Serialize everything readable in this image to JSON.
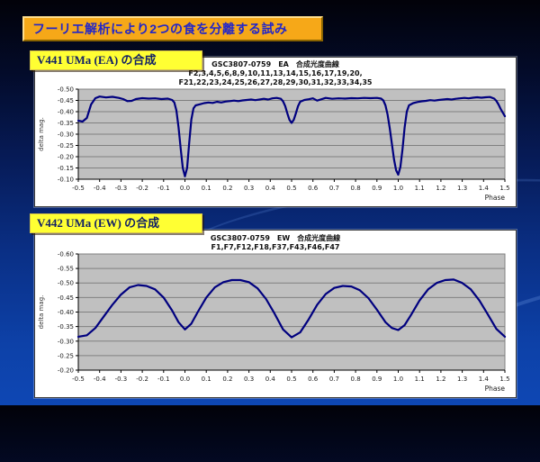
{
  "slide": {
    "title": "フーリエ解析により2つの食を分離する試み",
    "colors": {
      "title_bg": "#f6a818",
      "title_text": "#2226c8",
      "label_bg": "#ffff33",
      "label_text": "#101f66",
      "curve": "#00007f",
      "plot_bg": "#c0c0c0",
      "gridline": "#808080",
      "axis": "#000000"
    }
  },
  "sections": [
    {
      "label": "V441 UMa (EA) の合成"
    },
    {
      "label": "V442 UMa (EW) の合成"
    }
  ],
  "chart_data": [
    {
      "type": "line",
      "title_lines": [
        "GSC3807-0759　EA　合成光度曲線",
        "F2,3,4,5,6,8,9,10,11,13,14,15,16,17,19,20,",
        "F21,22,23,24,25,26,27,28,29,30,31,32,33,34,35"
      ],
      "xlabel": "Phase",
      "ylabel": "delta mag.",
      "xlim": [
        -0.5,
        1.5
      ],
      "ylim_top_to_bottom": [
        -0.5,
        -0.1
      ],
      "grid": "horizontal",
      "legend": "none",
      "x_ticks": [
        -0.5,
        -0.4,
        -0.3,
        -0.2,
        -0.1,
        0.0,
        0.1,
        0.2,
        0.3,
        0.4,
        0.5,
        0.6,
        0.7,
        0.8,
        0.9,
        1.0,
        1.1,
        1.2,
        1.3,
        1.4,
        1.5
      ],
      "x_tick_labels": [
        "-0.5",
        "-0.4",
        "-0.3",
        "-0.2",
        "-0.1",
        "0.0",
        "0.1",
        "0.2",
        "0.3",
        "0.4",
        "0.5",
        "0.6",
        "0.7",
        "0.8",
        "0.9",
        "1.0",
        "1.1",
        "1.2",
        "1.3",
        "1.4",
        "1.5"
      ],
      "y_ticks": [
        -0.5,
        -0.45,
        -0.4,
        -0.35,
        -0.3,
        -0.25,
        -0.2,
        -0.15,
        -0.1
      ],
      "y_tick_labels": [
        "-0.50",
        "-0.45",
        "-0.40",
        "-0.35",
        "-0.30",
        "-0.25",
        "-0.20",
        "-0.15",
        "-0.10"
      ],
      "points": [
        [
          -0.5,
          -0.36
        ],
        [
          -0.48,
          -0.356
        ],
        [
          -0.46,
          -0.372
        ],
        [
          -0.44,
          -0.432
        ],
        [
          -0.42,
          -0.46
        ],
        [
          -0.4,
          -0.467
        ],
        [
          -0.37,
          -0.463
        ],
        [
          -0.34,
          -0.466
        ],
        [
          -0.31,
          -0.461
        ],
        [
          -0.29,
          -0.456
        ],
        [
          -0.27,
          -0.447
        ],
        [
          -0.25,
          -0.448
        ],
        [
          -0.23,
          -0.456
        ],
        [
          -0.2,
          -0.46
        ],
        [
          -0.17,
          -0.458
        ],
        [
          -0.14,
          -0.459
        ],
        [
          -0.11,
          -0.456
        ],
        [
          -0.08,
          -0.458
        ],
        [
          -0.06,
          -0.452
        ],
        [
          -0.05,
          -0.441
        ],
        [
          -0.04,
          -0.405
        ],
        [
          -0.03,
          -0.33
        ],
        [
          -0.02,
          -0.235
        ],
        [
          -0.01,
          -0.15
        ],
        [
          0.0,
          -0.113
        ],
        [
          0.01,
          -0.15
        ],
        [
          0.02,
          -0.26
        ],
        [
          0.03,
          -0.365
        ],
        [
          0.04,
          -0.415
        ],
        [
          0.05,
          -0.428
        ],
        [
          0.07,
          -0.433
        ],
        [
          0.09,
          -0.438
        ],
        [
          0.11,
          -0.441
        ],
        [
          0.13,
          -0.439
        ],
        [
          0.15,
          -0.444
        ],
        [
          0.17,
          -0.441
        ],
        [
          0.19,
          -0.445
        ],
        [
          0.21,
          -0.447
        ],
        [
          0.23,
          -0.449
        ],
        [
          0.25,
          -0.447
        ],
        [
          0.27,
          -0.45
        ],
        [
          0.29,
          -0.452
        ],
        [
          0.31,
          -0.454
        ],
        [
          0.33,
          -0.451
        ],
        [
          0.35,
          -0.454
        ],
        [
          0.37,
          -0.457
        ],
        [
          0.39,
          -0.454
        ],
        [
          0.41,
          -0.459
        ],
        [
          0.43,
          -0.461
        ],
        [
          0.45,
          -0.457
        ],
        [
          0.46,
          -0.446
        ],
        [
          0.47,
          -0.425
        ],
        [
          0.48,
          -0.392
        ],
        [
          0.49,
          -0.364
        ],
        [
          0.5,
          -0.35
        ],
        [
          0.51,
          -0.364
        ],
        [
          0.52,
          -0.392
        ],
        [
          0.53,
          -0.424
        ],
        [
          0.54,
          -0.444
        ],
        [
          0.56,
          -0.452
        ],
        [
          0.58,
          -0.455
        ],
        [
          0.6,
          -0.459
        ],
        [
          0.62,
          -0.449
        ],
        [
          0.64,
          -0.455
        ],
        [
          0.66,
          -0.461
        ],
        [
          0.69,
          -0.457
        ],
        [
          0.72,
          -0.459
        ],
        [
          0.75,
          -0.458
        ],
        [
          0.78,
          -0.46
        ],
        [
          0.81,
          -0.459
        ],
        [
          0.84,
          -0.461
        ],
        [
          0.87,
          -0.46
        ],
        [
          0.9,
          -0.461
        ],
        [
          0.92,
          -0.458
        ],
        [
          0.93,
          -0.45
        ],
        [
          0.94,
          -0.428
        ],
        [
          0.95,
          -0.388
        ],
        [
          0.96,
          -0.328
        ],
        [
          0.97,
          -0.258
        ],
        [
          0.98,
          -0.188
        ],
        [
          0.99,
          -0.14
        ],
        [
          1.0,
          -0.12
        ],
        [
          1.01,
          -0.155
        ],
        [
          1.02,
          -0.232
        ],
        [
          1.03,
          -0.33
        ],
        [
          1.04,
          -0.4
        ],
        [
          1.05,
          -0.428
        ],
        [
          1.07,
          -0.438
        ],
        [
          1.09,
          -0.443
        ],
        [
          1.11,
          -0.446
        ],
        [
          1.13,
          -0.448
        ],
        [
          1.15,
          -0.451
        ],
        [
          1.17,
          -0.449
        ],
        [
          1.19,
          -0.452
        ],
        [
          1.21,
          -0.454
        ],
        [
          1.23,
          -0.456
        ],
        [
          1.25,
          -0.454
        ],
        [
          1.27,
          -0.457
        ],
        [
          1.29,
          -0.459
        ],
        [
          1.31,
          -0.461
        ],
        [
          1.33,
          -0.459
        ],
        [
          1.35,
          -0.462
        ],
        [
          1.37,
          -0.464
        ],
        [
          1.39,
          -0.462
        ],
        [
          1.41,
          -0.464
        ],
        [
          1.43,
          -0.465
        ],
        [
          1.45,
          -0.458
        ],
        [
          1.46,
          -0.448
        ],
        [
          1.47,
          -0.432
        ],
        [
          1.48,
          -0.412
        ],
        [
          1.49,
          -0.396
        ],
        [
          1.5,
          -0.38
        ]
      ]
    },
    {
      "type": "line",
      "title_lines": [
        "GSC3807-0759　EW　合成光度曲線",
        "F1,F7,F12,F18,F37,F43,F46,F47"
      ],
      "xlabel": "Phase",
      "ylabel": "delta mag.",
      "xlim": [
        -0.5,
        1.5
      ],
      "ylim_top_to_bottom": [
        -0.6,
        -0.2
      ],
      "grid": "horizontal",
      "legend": "none",
      "x_ticks": [
        -0.5,
        -0.4,
        -0.3,
        -0.2,
        -0.1,
        0.0,
        0.1,
        0.2,
        0.3,
        0.4,
        0.5,
        0.6,
        0.7,
        0.8,
        0.9,
        1.0,
        1.1,
        1.2,
        1.3,
        1.4,
        1.5
      ],
      "x_tick_labels": [
        "-0.5",
        "-0.4",
        "-0.3",
        "-0.2",
        "-0.1",
        "0.0",
        "0.1",
        "0.2",
        "0.3",
        "0.4",
        "0.5",
        "0.6",
        "0.7",
        "0.8",
        "0.9",
        "1.0",
        "1.1",
        "1.2",
        "1.3",
        "1.4",
        "1.5"
      ],
      "y_ticks": [
        -0.6,
        -0.55,
        -0.5,
        -0.45,
        -0.4,
        -0.35,
        -0.3,
        -0.25,
        -0.2
      ],
      "y_tick_labels": [
        "-0.60",
        "-0.55",
        "-0.50",
        "-0.45",
        "-0.40",
        "-0.35",
        "-0.30",
        "-0.25",
        "-0.20"
      ],
      "points": [
        [
          -0.5,
          -0.315
        ],
        [
          -0.46,
          -0.32
        ],
        [
          -0.42,
          -0.345
        ],
        [
          -0.38,
          -0.385
        ],
        [
          -0.34,
          -0.425
        ],
        [
          -0.3,
          -0.46
        ],
        [
          -0.26,
          -0.485
        ],
        [
          -0.22,
          -0.493
        ],
        [
          -0.18,
          -0.49
        ],
        [
          -0.14,
          -0.478
        ],
        [
          -0.1,
          -0.45
        ],
        [
          -0.06,
          -0.405
        ],
        [
          -0.03,
          -0.365
        ],
        [
          0.0,
          -0.34
        ],
        [
          0.03,
          -0.36
        ],
        [
          0.06,
          -0.4
        ],
        [
          0.1,
          -0.45
        ],
        [
          0.14,
          -0.485
        ],
        [
          0.18,
          -0.503
        ],
        [
          0.22,
          -0.51
        ],
        [
          0.26,
          -0.51
        ],
        [
          0.3,
          -0.503
        ],
        [
          0.34,
          -0.482
        ],
        [
          0.38,
          -0.445
        ],
        [
          0.42,
          -0.395
        ],
        [
          0.46,
          -0.34
        ],
        [
          0.5,
          -0.313
        ],
        [
          0.54,
          -0.33
        ],
        [
          0.58,
          -0.375
        ],
        [
          0.62,
          -0.425
        ],
        [
          0.66,
          -0.462
        ],
        [
          0.7,
          -0.483
        ],
        [
          0.74,
          -0.49
        ],
        [
          0.78,
          -0.488
        ],
        [
          0.82,
          -0.475
        ],
        [
          0.86,
          -0.448
        ],
        [
          0.9,
          -0.408
        ],
        [
          0.94,
          -0.365
        ],
        [
          0.97,
          -0.345
        ],
        [
          1.0,
          -0.338
        ],
        [
          1.03,
          -0.355
        ],
        [
          1.06,
          -0.39
        ],
        [
          1.1,
          -0.44
        ],
        [
          1.14,
          -0.478
        ],
        [
          1.18,
          -0.5
        ],
        [
          1.22,
          -0.51
        ],
        [
          1.26,
          -0.512
        ],
        [
          1.3,
          -0.5
        ],
        [
          1.34,
          -0.478
        ],
        [
          1.38,
          -0.44
        ],
        [
          1.42,
          -0.392
        ],
        [
          1.46,
          -0.342
        ],
        [
          1.5,
          -0.315
        ]
      ]
    }
  ]
}
